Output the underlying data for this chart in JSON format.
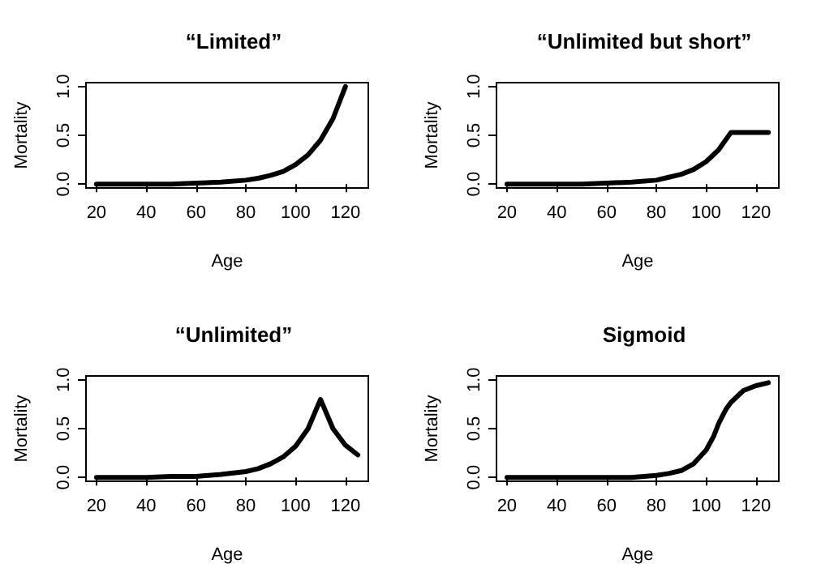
{
  "chart_data": [
    {
      "type": "line",
      "title": "“Limited”",
      "xlabel": "Age",
      "ylabel": "Mortality",
      "color": "#000000",
      "grid": false,
      "xlim": [
        15.8,
        129.2
      ],
      "ylim": [
        -0.04,
        1.04
      ],
      "xticks": [
        20,
        40,
        60,
        80,
        100,
        120
      ],
      "yticks": [
        {
          "value": 0,
          "label": "0.0"
        },
        {
          "value": 0.5,
          "label": "0.5"
        },
        {
          "value": 1,
          "label": "1.0"
        }
      ],
      "x": [
        20,
        30,
        40,
        50,
        60,
        70,
        80,
        85,
        90,
        95,
        100,
        105,
        110,
        115,
        120
      ],
      "values": [
        0,
        0,
        0,
        0,
        0.01,
        0.02,
        0.04,
        0.06,
        0.09,
        0.13,
        0.2,
        0.3,
        0.45,
        0.67,
        1.0
      ]
    },
    {
      "type": "line",
      "title": "“Unlimited but short”",
      "xlabel": "Age",
      "ylabel": "Mortality",
      "color": "#000000",
      "grid": false,
      "xlim": [
        15.8,
        129.2
      ],
      "ylim": [
        -0.04,
        1.04
      ],
      "xticks": [
        20,
        40,
        60,
        80,
        100,
        120
      ],
      "yticks": [
        {
          "value": 0,
          "label": "0.0"
        },
        {
          "value": 0.5,
          "label": "0.5"
        },
        {
          "value": 1,
          "label": "1.0"
        }
      ],
      "x": [
        20,
        30,
        40,
        50,
        60,
        70,
        80,
        85,
        90,
        95,
        100,
        105,
        110,
        115,
        120,
        125
      ],
      "values": [
        0,
        0,
        0,
        0,
        0.01,
        0.02,
        0.04,
        0.07,
        0.1,
        0.15,
        0.23,
        0.35,
        0.53,
        0.53,
        0.53,
        0.53
      ]
    },
    {
      "type": "line",
      "title": "“Unlimited”",
      "xlabel": "Age",
      "ylabel": "Mortality",
      "color": "#000000",
      "grid": false,
      "xlim": [
        15.8,
        129.2
      ],
      "ylim": [
        -0.04,
        1.04
      ],
      "xticks": [
        20,
        40,
        60,
        80,
        100,
        120
      ],
      "yticks": [
        {
          "value": 0,
          "label": "0.0"
        },
        {
          "value": 0.5,
          "label": "0.5"
        },
        {
          "value": 1,
          "label": "1.0"
        }
      ],
      "x": [
        20,
        30,
        40,
        50,
        60,
        70,
        80,
        85,
        90,
        95,
        100,
        105,
        110,
        115,
        120,
        125
      ],
      "values": [
        0,
        0,
        0,
        0.01,
        0.01,
        0.03,
        0.06,
        0.09,
        0.14,
        0.21,
        0.32,
        0.5,
        0.8,
        0.5,
        0.33,
        0.23
      ]
    },
    {
      "type": "line",
      "title": "Sigmoid",
      "xlabel": "Age",
      "ylabel": "Mortality",
      "color": "#000000",
      "grid": false,
      "xlim": [
        15.8,
        129.2
      ],
      "ylim": [
        -0.04,
        1.04
      ],
      "xticks": [
        20,
        40,
        60,
        80,
        100,
        120
      ],
      "yticks": [
        {
          "value": 0,
          "label": "0.0"
        },
        {
          "value": 0.5,
          "label": "0.5"
        },
        {
          "value": 1,
          "label": "1.0"
        }
      ],
      "x": [
        20,
        40,
        60,
        70,
        80,
        85,
        90,
        95,
        100,
        103,
        105,
        108,
        110,
        115,
        120,
        125
      ],
      "values": [
        0,
        0,
        0,
        0,
        0.02,
        0.04,
        0.07,
        0.14,
        0.28,
        0.42,
        0.55,
        0.7,
        0.77,
        0.89,
        0.94,
        0.97
      ]
    }
  ]
}
